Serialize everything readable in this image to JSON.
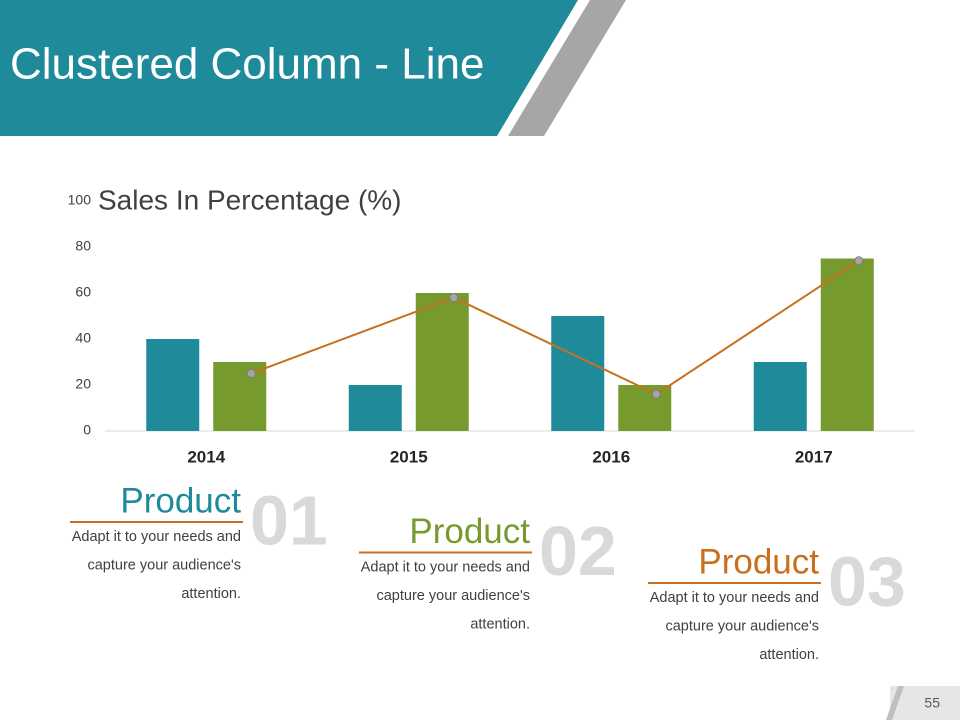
{
  "header": {
    "title": "Clustered Column - Line"
  },
  "chart_data": {
    "type": "bar",
    "title": "Sales In Percentage (%)",
    "categories": [
      "2014",
      "2015",
      "2016",
      "2017"
    ],
    "series": [
      {
        "color": "#1e8a9a",
        "values": [
          40,
          20,
          50,
          30
        ]
      },
      {
        "color": "#779a2e",
        "values": [
          30,
          60,
          20,
          75
        ]
      },
      {
        "type": "line",
        "color": "#c8701e",
        "values": [
          25,
          58,
          16,
          74
        ]
      }
    ],
    "ylim": [
      0,
      100
    ],
    "yticks": [
      0,
      20,
      40,
      60,
      80,
      100
    ]
  },
  "products": [
    {
      "title": "Product",
      "number": "01",
      "color": "#1e8a9a",
      "lines": [
        "Adapt it to your needs and",
        "capture your audience's",
        "attention."
      ]
    },
    {
      "title": "Product",
      "number": "02",
      "color": "#779a2e",
      "lines": [
        "Adapt it to your needs and",
        "capture your audience's",
        "attention."
      ]
    },
    {
      "title": "Product",
      "number": "03",
      "color": "#c8701e",
      "lines": [
        "Adapt it to your needs and",
        "capture your audience's",
        "attention."
      ]
    }
  ],
  "page_number": "55"
}
